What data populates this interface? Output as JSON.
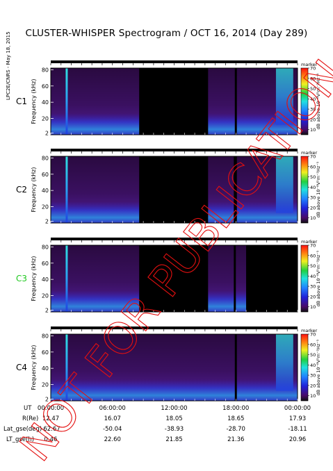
{
  "title": "CLUSTER-WHISPER Spectrogram / OCT 16, 2014 (Day 289)",
  "credit": "LPC2E/CNRS - May 18, 2015",
  "watermark": "NOT FOR PUBLICATION",
  "colors": {
    "background_panel": "#000000",
    "watermark": "#e41010",
    "c3_label": "#1ec81e"
  },
  "chart_data": [
    {
      "type": "heatmap",
      "satellite": "C1",
      "ylabel": "Frequency (kHz)",
      "yticks": [
        "2",
        "20",
        "40",
        "60",
        "80"
      ],
      "colorbar": {
        "label": "dB above 10⁻⁸V²m⁻²Hz⁻¹",
        "ticks": [
          "10",
          "20",
          "30",
          "40",
          "50",
          "60",
          "70"
        ],
        "range": [
          5,
          70
        ],
        "top_text": "marker"
      },
      "data_gaps_h": [
        [
          8.6,
          15.3
        ],
        [
          17.9,
          18.1
        ]
      ]
    },
    {
      "type": "heatmap",
      "satellite": "C2",
      "ylabel": "Frequency (kHz)",
      "yticks": [
        "2",
        "20",
        "40",
        "60",
        "80"
      ],
      "colorbar": {
        "label": "dB above 10⁻⁸V²m⁻²Hz⁻¹",
        "ticks": [
          "10",
          "20",
          "30",
          "40",
          "50",
          "60",
          "70"
        ],
        "range": [
          5,
          70
        ],
        "top_text": "marker"
      },
      "data_gaps_h": [
        [
          8.6,
          15.3
        ],
        [
          17.8,
          18.1
        ]
      ]
    },
    {
      "type": "heatmap",
      "satellite": "C3",
      "ylabel": "Frequency (kHz)",
      "yticks": [
        "2",
        "20",
        "40",
        "60",
        "80"
      ],
      "colorbar": {
        "label": "dB above 10⁻⁸V²m⁻²Hz⁻¹",
        "ticks": [
          "10",
          "20",
          "30",
          "40",
          "50",
          "60",
          "70"
        ],
        "range": [
          5,
          70
        ],
        "top_text": "marker"
      },
      "data_gaps_h": [
        [
          8.6,
          15.3
        ],
        [
          17.8,
          18.0
        ],
        [
          19.0,
          24.0
        ]
      ]
    },
    {
      "type": "heatmap",
      "satellite": "C4",
      "ylabel": "Frequency (kHz)",
      "yticks": [
        "2",
        "20",
        "40",
        "60",
        "80"
      ],
      "colorbar": {
        "label": "dB above 10⁻⁸V²m⁻²Hz⁻¹",
        "ticks": [
          "10",
          "20",
          "30",
          "40",
          "50",
          "60",
          "70"
        ],
        "range": [
          5,
          70
        ],
        "top_text": "marker"
      },
      "data_gaps_h": [
        [
          17.9,
          18.1
        ]
      ]
    }
  ],
  "x_axis": {
    "range_h": [
      0,
      24
    ],
    "row_labels": [
      "UT",
      "R(Re)",
      "Lat_gse(deg)",
      "LT_gse(h)"
    ],
    "columns": [
      {
        "UT": "00:00:00",
        "R(Re)": "12.47",
        "Lat_gse(deg)": "-62.67",
        "LT_gse(h)": "0.46"
      },
      {
        "UT": "06:00:00",
        "R(Re)": "16.07",
        "Lat_gse(deg)": "-50.04",
        "LT_gse(h)": "22.60"
      },
      {
        "UT": "12:00:00",
        "R(Re)": "18.05",
        "Lat_gse(deg)": "-38.93",
        "LT_gse(h)": "21.85"
      },
      {
        "UT": "18:00:00",
        "R(Re)": "18.65",
        "Lat_gse(deg)": "-28.70",
        "LT_gse(h)": "21.36"
      },
      {
        "UT": "00:00:00",
        "R(Re)": "17.93",
        "Lat_gse(deg)": "-18.11",
        "LT_gse(h)": "20.96"
      }
    ]
  }
}
